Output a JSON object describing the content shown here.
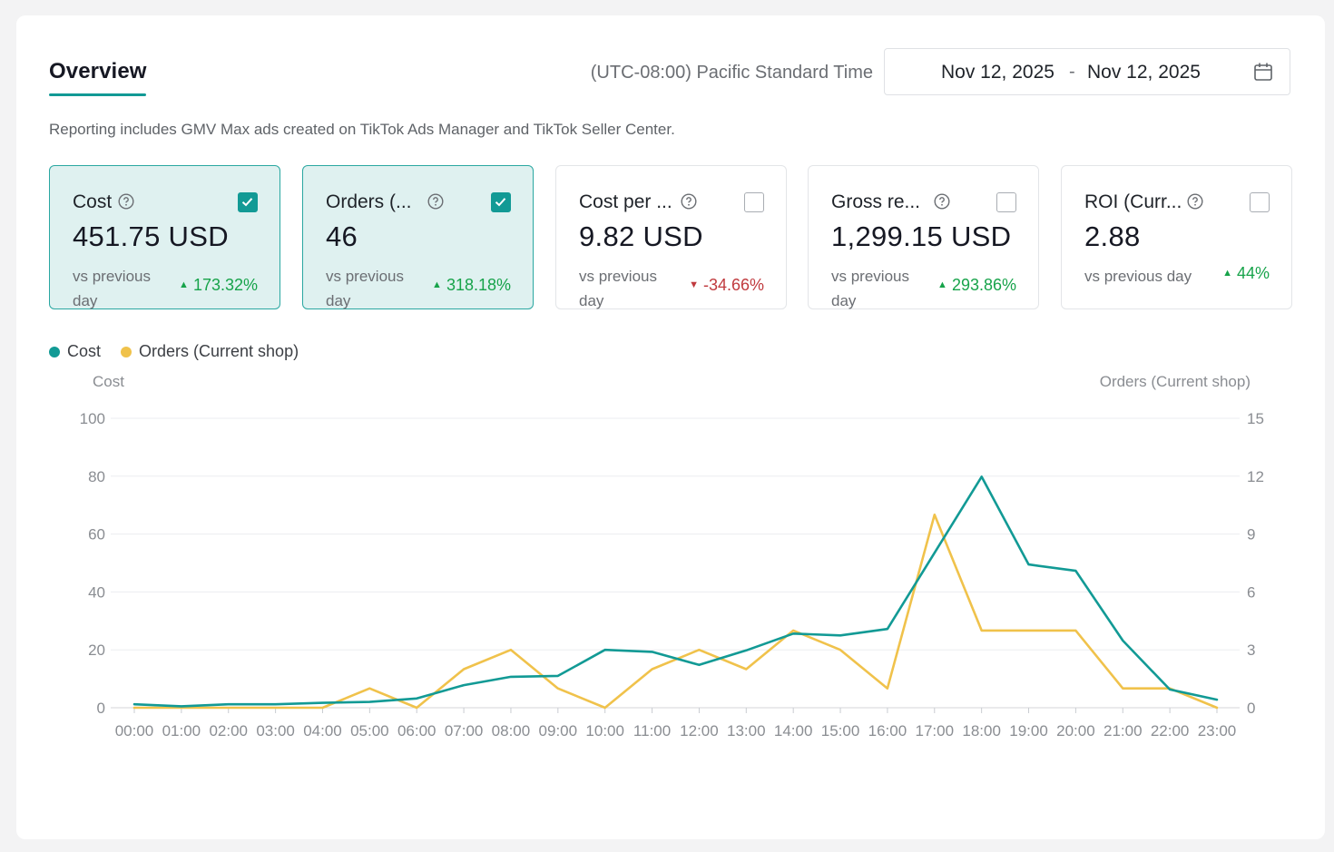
{
  "header": {
    "tab_title": "Overview",
    "timezone": "(UTC-08:00) Pacific Standard Time",
    "date_start": "Nov 12, 2025",
    "date_separator": "-",
    "date_end": "Nov 12, 2025"
  },
  "notice": "Reporting includes GMV Max ads created on TikTok Ads Manager and TikTok Seller Center.",
  "metrics": [
    {
      "label": "Cost",
      "value": "451.75 USD",
      "vs_label": "vs previous day",
      "change": "173.32%",
      "direction": "up",
      "checked": true
    },
    {
      "label": "Orders (...",
      "value": "46",
      "vs_label": "vs previous day",
      "change": "318.18%",
      "direction": "up",
      "checked": true
    },
    {
      "label": "Cost per ...",
      "value": "9.82 USD",
      "vs_label": "vs previous day",
      "change": "-34.66%",
      "direction": "down",
      "checked": false
    },
    {
      "label": "Gross re...",
      "value": "1,299.15 USD",
      "vs_label": "vs previous day",
      "change": "293.86%",
      "direction": "up",
      "checked": false
    },
    {
      "label": "ROI (Curr...",
      "value": "2.88",
      "vs_label": "vs previous day",
      "change": "44%",
      "direction": "up",
      "checked": false
    }
  ],
  "colors": {
    "accent": "#129a95",
    "cost_line": "#129a95",
    "orders_line": "#f0c24b",
    "up": "#17a34a",
    "down": "#c03a3e"
  },
  "chart_data": {
    "type": "line",
    "legend": [
      "Cost",
      "Orders (Current shop)"
    ],
    "legend_position": "top-left",
    "y_left_label": "Cost",
    "y_right_label": "Orders (Current shop)",
    "y_left_ticks": [
      "0",
      "20",
      "40",
      "60",
      "80",
      "100"
    ],
    "y_right_ticks": [
      "0",
      "3",
      "6",
      "9",
      "12",
      "15"
    ],
    "y_left_range": [
      0,
      100
    ],
    "y_right_range": [
      0,
      15
    ],
    "grid": true,
    "categories": [
      "00:00",
      "01:00",
      "02:00",
      "03:00",
      "04:00",
      "05:00",
      "06:00",
      "07:00",
      "08:00",
      "09:00",
      "10:00",
      "11:00",
      "12:00",
      "13:00",
      "14:00",
      "15:00",
      "16:00",
      "17:00",
      "18:00",
      "19:00",
      "20:00",
      "21:00",
      "22:00",
      "23:00"
    ],
    "series": [
      {
        "name": "Cost",
        "axis": "left",
        "values": [
          1.2,
          0.5,
          1.2,
          1.2,
          1.7,
          2.0,
          3.2,
          7.8,
          10.7,
          11.0,
          20.0,
          19.3,
          14.8,
          19.8,
          25.6,
          25.0,
          27.2,
          53.5,
          79.8,
          49.5,
          47.3,
          23.2,
          6.3,
          2.8
        ]
      },
      {
        "name": "Orders (Current shop)",
        "axis": "right",
        "values": [
          0,
          0,
          0,
          0,
          0,
          1,
          0,
          2,
          3,
          1,
          0,
          2,
          3,
          2,
          4,
          3,
          1,
          10,
          4,
          4,
          4,
          1,
          1,
          0
        ]
      }
    ]
  }
}
